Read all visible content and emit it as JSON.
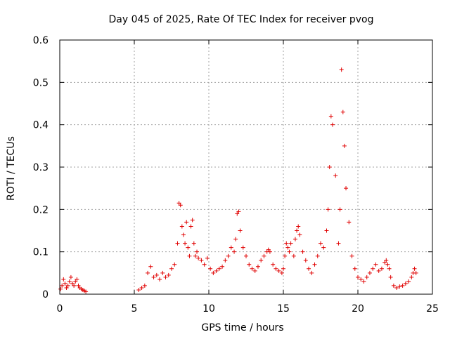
{
  "chart_data": {
    "type": "scatter",
    "title": "Day 045 of 2025, Rate Of TEC Index for receiver pvog",
    "xlabel": "GPS time / hours",
    "ylabel": "ROTI / TECUs",
    "xlim": [
      0,
      25
    ],
    "ylim": [
      0,
      0.6
    ],
    "x_ticks": [
      "0",
      "5",
      "10",
      "15",
      "20",
      "25"
    ],
    "y_ticks": [
      "0",
      "0.1",
      "0.2",
      "0.3",
      "0.4",
      "0.5",
      "0.6"
    ],
    "grid": true,
    "marker": "+",
    "marker_color": "#e00000",
    "series": [
      {
        "name": "ROTI",
        "x": [
          0.05,
          0.15,
          0.25,
          0.35,
          0.45,
          0.55,
          0.65,
          0.75,
          0.85,
          0.95,
          1.05,
          1.15,
          1.25,
          1.35,
          1.45,
          1.55,
          1.65,
          1.75,
          5.3,
          5.5,
          5.7,
          5.9,
          6.1,
          6.3,
          6.5,
          6.7,
          6.9,
          7.1,
          7.3,
          7.5,
          7.7,
          7.9,
          8.0,
          8.1,
          8.2,
          8.3,
          8.4,
          8.5,
          8.6,
          8.7,
          8.8,
          8.9,
          9.0,
          9.1,
          9.2,
          9.3,
          9.5,
          9.7,
          9.9,
          10.1,
          10.3,
          10.5,
          10.7,
          10.9,
          11.1,
          11.3,
          11.5,
          11.7,
          11.8,
          11.9,
          12.0,
          12.1,
          12.3,
          12.5,
          12.7,
          12.9,
          13.1,
          13.3,
          13.5,
          13.7,
          13.9,
          14.0,
          14.1,
          14.3,
          14.5,
          14.7,
          14.9,
          15.0,
          15.1,
          15.2,
          15.3,
          15.4,
          15.5,
          15.7,
          15.8,
          15.9,
          16.0,
          16.1,
          16.3,
          16.5,
          16.7,
          16.9,
          17.1,
          17.3,
          17.5,
          17.7,
          17.9,
          18.0,
          18.1,
          18.2,
          18.3,
          18.5,
          18.7,
          18.8,
          18.9,
          19.0,
          19.1,
          19.2,
          19.4,
          19.6,
          19.8,
          20.0,
          20.2,
          20.4,
          20.6,
          20.8,
          21.0,
          21.2,
          21.4,
          21.6,
          21.8,
          21.9,
          22.0,
          22.1,
          22.2,
          22.4,
          22.6,
          22.8,
          23.0,
          23.2,
          23.4,
          23.6,
          23.7,
          23.8,
          23.9
        ],
        "y": [
          0.012,
          0.02,
          0.035,
          0.025,
          0.015,
          0.02,
          0.03,
          0.04,
          0.025,
          0.02,
          0.03,
          0.035,
          0.02,
          0.015,
          0.012,
          0.01,
          0.008,
          0.006,
          0.01,
          0.015,
          0.02,
          0.05,
          0.065,
          0.04,
          0.045,
          0.035,
          0.05,
          0.04,
          0.045,
          0.06,
          0.07,
          0.12,
          0.215,
          0.21,
          0.16,
          0.14,
          0.12,
          0.17,
          0.11,
          0.09,
          0.16,
          0.175,
          0.12,
          0.09,
          0.1,
          0.085,
          0.08,
          0.07,
          0.085,
          0.06,
          0.05,
          0.055,
          0.06,
          0.065,
          0.08,
          0.09,
          0.11,
          0.1,
          0.13,
          0.19,
          0.195,
          0.15,
          0.11,
          0.09,
          0.07,
          0.06,
          0.055,
          0.065,
          0.08,
          0.09,
          0.1,
          0.105,
          0.1,
          0.07,
          0.06,
          0.055,
          0.05,
          0.06,
          0.09,
          0.12,
          0.11,
          0.1,
          0.12,
          0.09,
          0.13,
          0.15,
          0.16,
          0.14,
          0.1,
          0.08,
          0.06,
          0.05,
          0.07,
          0.09,
          0.12,
          0.11,
          0.15,
          0.2,
          0.3,
          0.42,
          0.4,
          0.28,
          0.12,
          0.2,
          0.53,
          0.43,
          0.35,
          0.25,
          0.17,
          0.09,
          0.06,
          0.04,
          0.035,
          0.03,
          0.04,
          0.05,
          0.06,
          0.07,
          0.055,
          0.06,
          0.075,
          0.08,
          0.07,
          0.06,
          0.04,
          0.02,
          0.015,
          0.018,
          0.02,
          0.025,
          0.03,
          0.04,
          0.05,
          0.06,
          0.05
        ]
      }
    ]
  }
}
